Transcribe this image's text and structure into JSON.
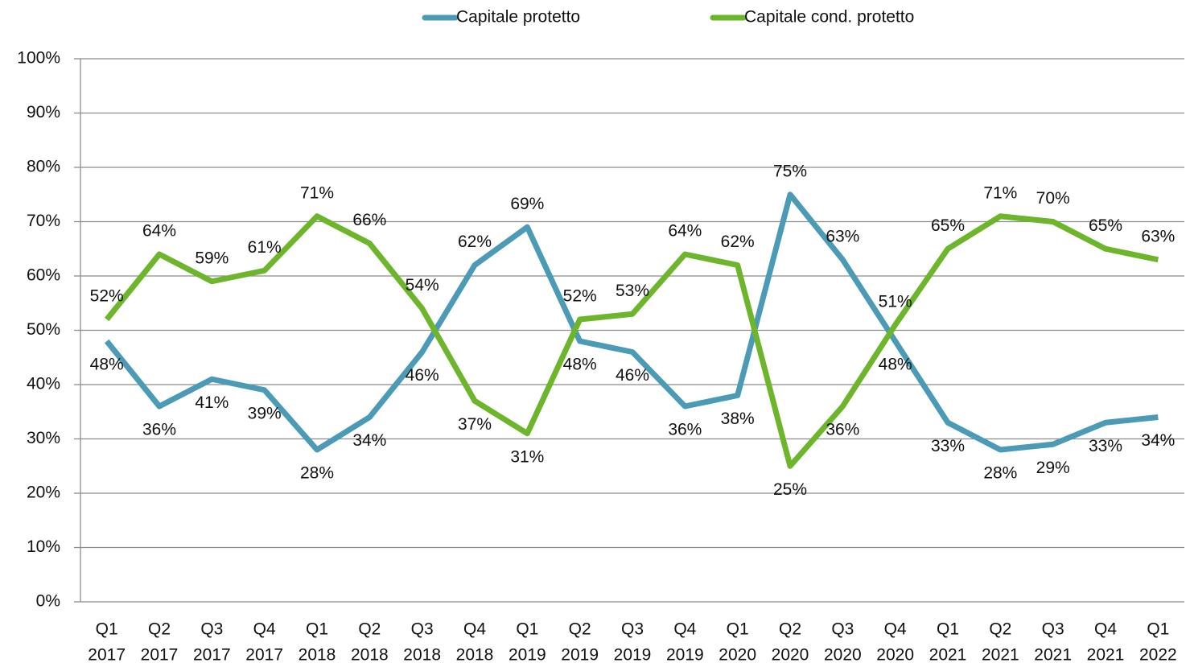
{
  "chart_data": {
    "type": "line",
    "categories": [
      [
        "Q1",
        "2017"
      ],
      [
        "Q2",
        "2017"
      ],
      [
        "Q3",
        "2017"
      ],
      [
        "Q4",
        "2017"
      ],
      [
        "Q1",
        "2018"
      ],
      [
        "Q2",
        "2018"
      ],
      [
        "Q3",
        "2018"
      ],
      [
        "Q4",
        "2018"
      ],
      [
        "Q1",
        "2019"
      ],
      [
        "Q2",
        "2019"
      ],
      [
        "Q3",
        "2019"
      ],
      [
        "Q4",
        "2019"
      ],
      [
        "Q1",
        "2020"
      ],
      [
        "Q2",
        "2020"
      ],
      [
        "Q3",
        "2020"
      ],
      [
        "Q4",
        "2020"
      ],
      [
        "Q1",
        "2021"
      ],
      [
        "Q2",
        "2021"
      ],
      [
        "Q3",
        "2021"
      ],
      [
        "Q4",
        "2021"
      ],
      [
        "Q1",
        "2022"
      ]
    ],
    "series": [
      {
        "name": "Capitale protetto",
        "color": "#4b9bb6",
        "values": [
          48,
          36,
          41,
          39,
          28,
          34,
          46,
          62,
          69,
          48,
          46,
          36,
          38,
          75,
          63,
          48,
          33,
          28,
          29,
          33,
          34
        ],
        "value_labels": [
          "48%",
          "36%",
          "41%",
          "39%",
          "28%",
          "34%",
          "46%",
          "62%",
          "69%",
          "48%",
          "46%",
          "36%",
          "38%",
          "75%",
          "63%",
          "48%",
          "33%",
          "28%",
          "29%",
          "33%",
          "34%"
        ]
      },
      {
        "name": "Capitale cond. protetto",
        "color": "#6db52b",
        "values": [
          52,
          64,
          59,
          61,
          71,
          66,
          54,
          37,
          31,
          52,
          53,
          64,
          62,
          25,
          36,
          51,
          65,
          71,
          70,
          65,
          63
        ],
        "value_labels": [
          "52%",
          "64%",
          "59%",
          "61%",
          "71%",
          "66%",
          "54%",
          "37%",
          "31%",
          "52%",
          "53%",
          "64%",
          "62%",
          "25%",
          "36%",
          "51%",
          "65%",
          "71%",
          "70%",
          "65%",
          "63%"
        ]
      }
    ],
    "ylim": [
      0,
      100
    ],
    "yticks": [
      {
        "value": 0,
        "label": "0%"
      },
      {
        "value": 10,
        "label": "10%"
      },
      {
        "value": 20,
        "label": "20%"
      },
      {
        "value": 30,
        "label": "30%"
      },
      {
        "value": 40,
        "label": "40%"
      },
      {
        "value": 50,
        "label": "50%"
      },
      {
        "value": 60,
        "label": "60%"
      },
      {
        "value": 70,
        "label": "70%"
      },
      {
        "value": 80,
        "label": "80%"
      },
      {
        "value": 90,
        "label": "90%"
      },
      {
        "value": 100,
        "label": "100%"
      }
    ],
    "grid": true,
    "legend": "top"
  }
}
